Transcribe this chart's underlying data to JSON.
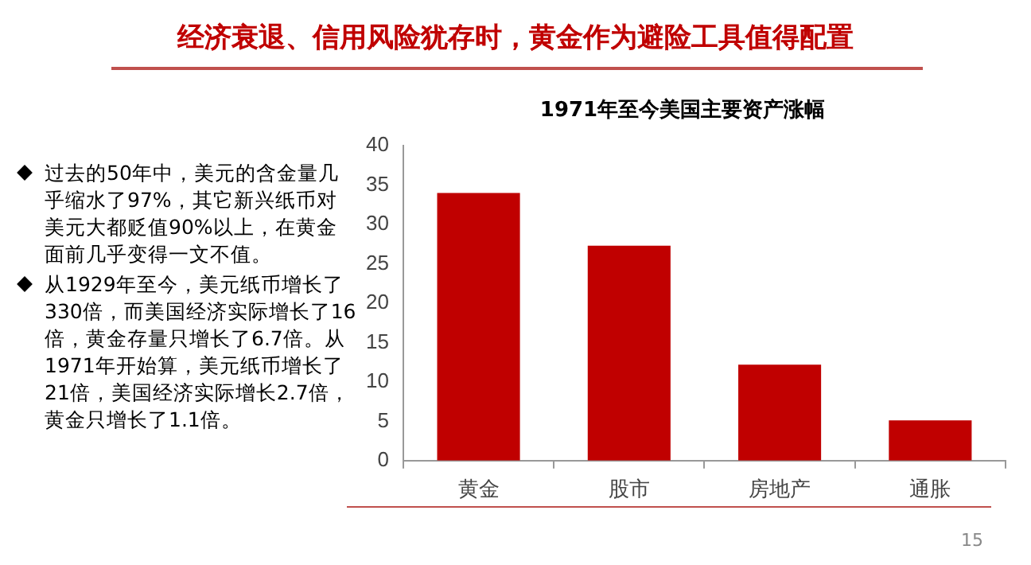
{
  "chart_data": {
    "type": "bar",
    "title": "经济衰退、信用风险犹存时，黄金作为避险工具值得配置",
    "subtitle": "1971年至今美国主要资产涨幅",
    "categories": [
      "黄金",
      "股市",
      "房地产",
      "通胀"
    ],
    "values": [
      34,
      27.3,
      12.2,
      5.1
    ],
    "color": "#c00000",
    "ylim": [
      0,
      40
    ],
    "yticks": [
      0,
      5,
      10,
      15,
      20,
      25,
      30,
      35,
      40
    ],
    "grid": false,
    "legend": false,
    "annotations": [
      "过去的50年中，美元的含金量几乎缩水了97%，其它新兴纸币对美元大都贬值90%以上，在黄金面前几乎变得一文不值。",
      "从1929年至今，美元纸币增长了330倍，而美国经济实际增长了16倍，黄金存量只增长了6.7倍。从1971年开始算，美元纸币增长了21倍，美国经济实际增长2.7倍，黄金只增长了1.1倍。",
      "15"
    ]
  }
}
